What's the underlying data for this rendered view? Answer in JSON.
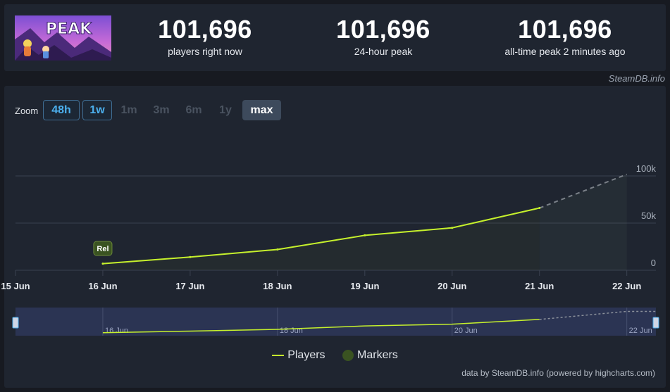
{
  "stats": [
    {
      "value": "101,696",
      "label": "players right now"
    },
    {
      "value": "101,696",
      "label": "24-hour peak"
    },
    {
      "value": "101,696",
      "label": "all-time peak 2 minutes ago"
    }
  ],
  "game": {
    "logo_text": "PEAK"
  },
  "credit_top": "SteamDB.info",
  "zoom": {
    "label": "Zoom",
    "buttons": [
      {
        "label": "48h",
        "state": "enabled"
      },
      {
        "label": "1w",
        "state": "enabled"
      },
      {
        "label": "1m",
        "state": "disabled"
      },
      {
        "label": "3m",
        "state": "disabled"
      },
      {
        "label": "6m",
        "state": "disabled"
      },
      {
        "label": "1y",
        "state": "disabled"
      },
      {
        "label": "max",
        "state": "selected"
      }
    ]
  },
  "chart_data": {
    "type": "line",
    "x_ticks": [
      "15 Jun",
      "16 Jun",
      "17 Jun",
      "18 Jun",
      "19 Jun",
      "20 Jun",
      "21 Jun",
      "22 Jun"
    ],
    "y_ticks": [
      "0",
      "50k",
      "100k"
    ],
    "ylim": [
      0,
      100000
    ],
    "xlim": [
      "15 Jun",
      "22 Jun 8:00"
    ],
    "grid": true,
    "series": [
      {
        "name": "Players",
        "color": "#c6f12c",
        "points": [
          {
            "x": "16 Jun",
            "y": 7000
          },
          {
            "x": "17 Jun",
            "y": 14000
          },
          {
            "x": "18 Jun",
            "y": 22000
          },
          {
            "x": "19 Jun",
            "y": 37000
          },
          {
            "x": "20 Jun",
            "y": 45000
          },
          {
            "x": "21 Jun",
            "y": 66000
          }
        ],
        "projection": [
          {
            "x": "21 Jun",
            "y": 66000
          },
          {
            "x": "22 Jun",
            "y": 101696
          }
        ]
      }
    ],
    "markers": [
      {
        "x": "16 Jun",
        "label": "Rel"
      }
    ],
    "legend": [
      "Players",
      "Markers"
    ],
    "legend_position": "bottom",
    "navigator": {
      "labels": [
        "16 Jun",
        "18 Jun",
        "20 Jun",
        "22 Jun"
      ]
    }
  },
  "credit_bottom": "data by SteamDB.info (powered by highcharts.com)"
}
